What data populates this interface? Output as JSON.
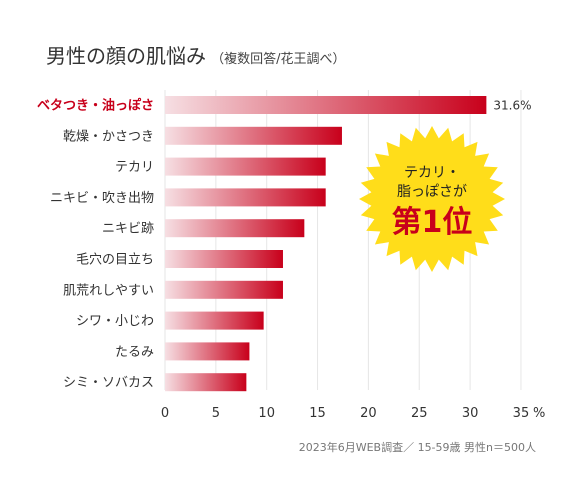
{
  "header": {
    "title": "男性の顔の肌悩み",
    "subtitle": "（複数回答/花王調べ）"
  },
  "chart_data": {
    "type": "bar",
    "orientation": "horizontal",
    "categories": [
      "ベタつき・油っぽさ",
      "乾燥・かさつき",
      "テカリ",
      "ニキビ・吹き出物",
      "ニキビ跡",
      "毛穴の目立ち",
      "肌荒れしやすい",
      "シワ・小じわ",
      "たるみ",
      "シミ・ソバカス"
    ],
    "values": [
      31.6,
      17.4,
      15.8,
      15.8,
      13.7,
      11.6,
      11.6,
      9.7,
      8.3,
      8.0
    ],
    "highlight_index": 0,
    "value_labels": [
      "31.6%"
    ],
    "x_ticks": [
      "0",
      "5",
      "10",
      "15",
      "20",
      "25",
      "30",
      "35"
    ],
    "x_unit": "%",
    "xlim": [
      0,
      35
    ],
    "grid": true,
    "colors": {
      "bar_dark": "#c8001b",
      "bar_light": "#f6dfe3",
      "highlight_label": "#c8001b",
      "grid": "#e6e6e6"
    }
  },
  "badge": {
    "line1": "テカリ・",
    "line2": "脂っぽさが",
    "line3": "第1位",
    "fill_color": "#ffdd1a",
    "text_color": "#c8001b"
  },
  "source": "2023年6月WEB調査／ 15-59歳 男性n＝500人"
}
